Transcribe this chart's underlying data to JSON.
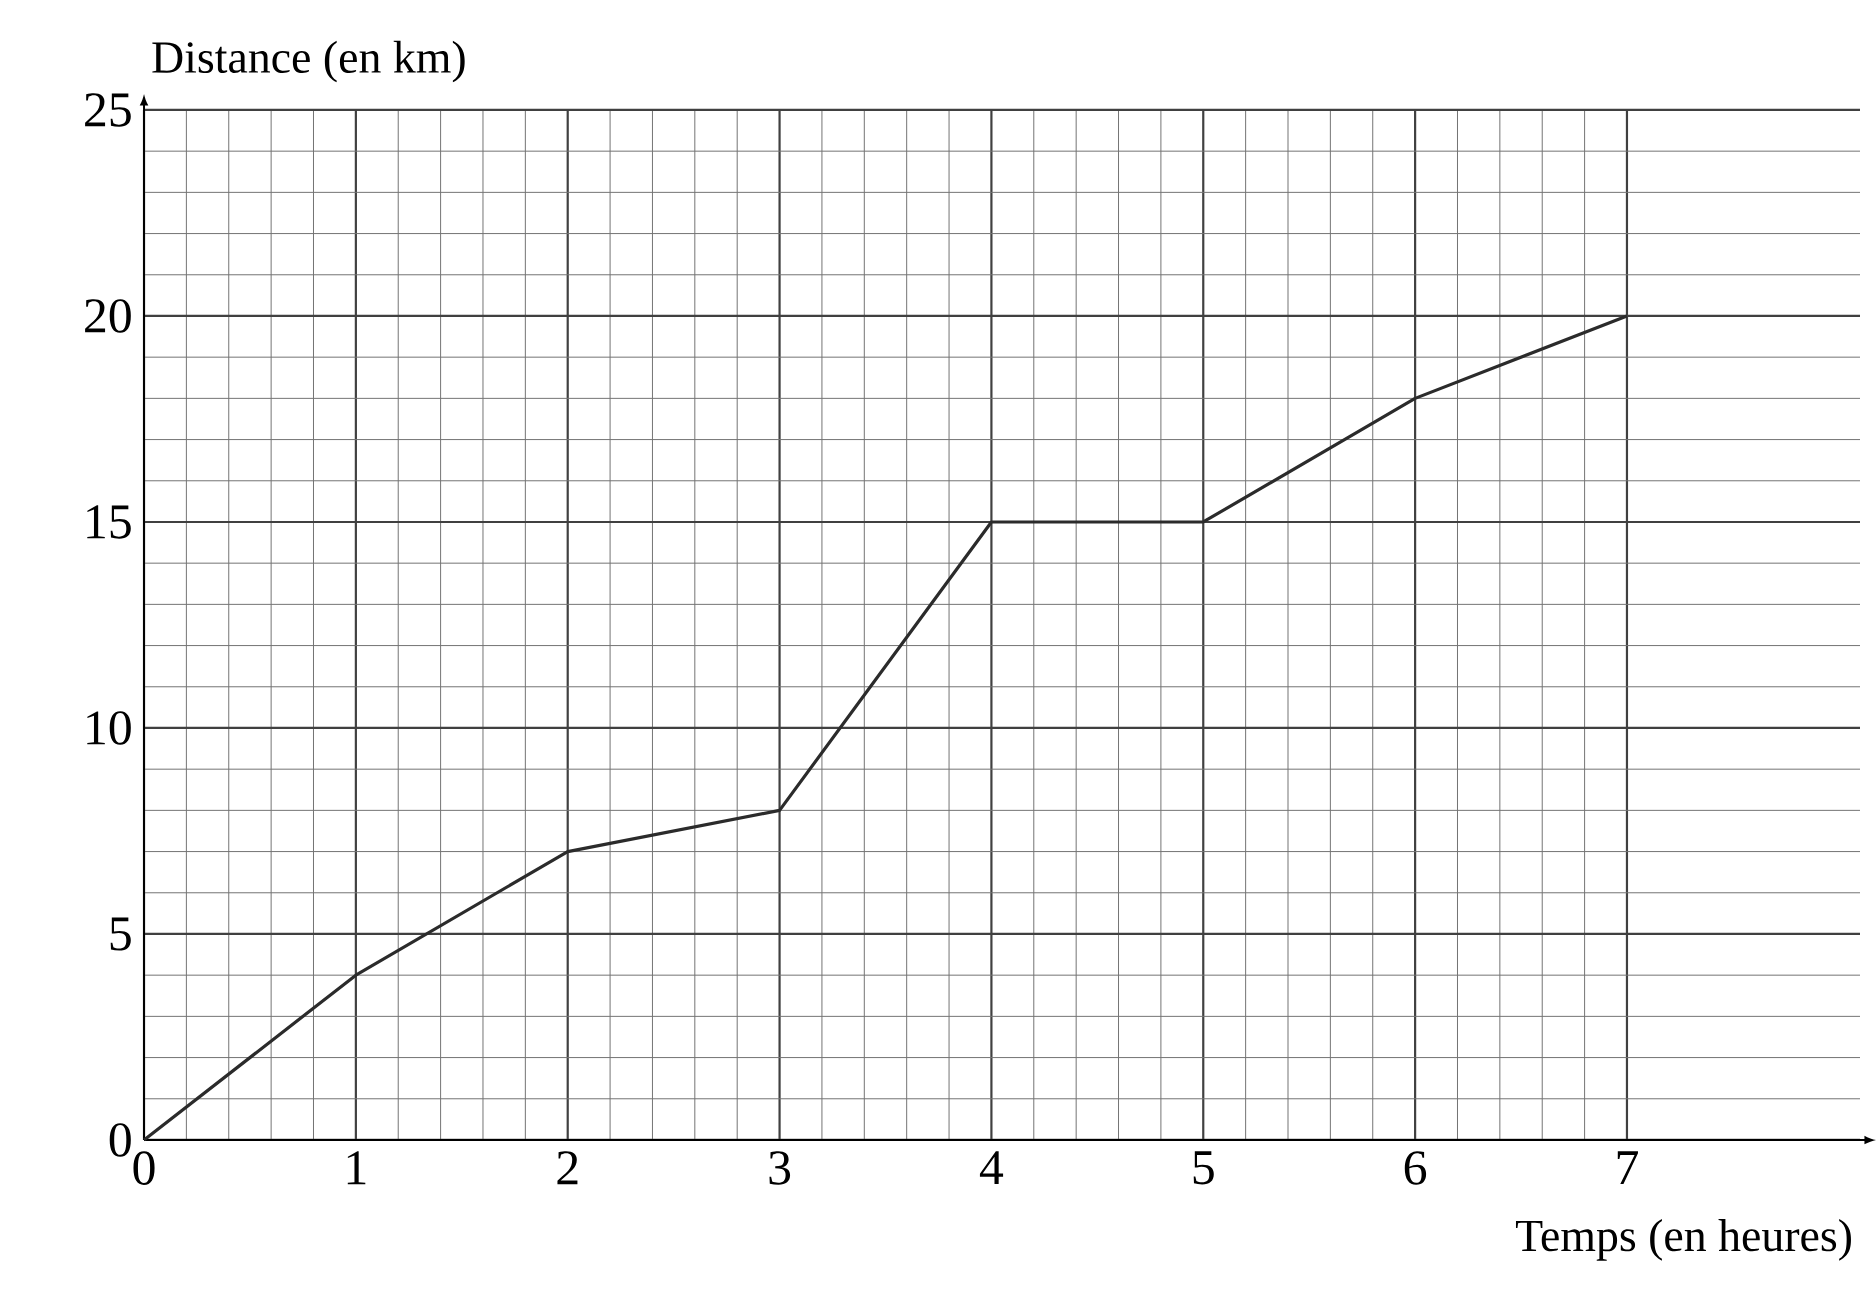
{
  "chart_data": {
    "type": "line",
    "xlabel": "Temps (en heures)",
    "ylabel": "Distance (en km)",
    "x": [
      0,
      1,
      2,
      3,
      4,
      5,
      6,
      7
    ],
    "series": [
      {
        "color": "#2b2b2b",
        "values": [
          0,
          4,
          7,
          8,
          15,
          15,
          18,
          20
        ]
      }
    ],
    "xlim": [
      0,
      8.1
    ],
    "ylim": [
      0,
      25
    ],
    "xticks": [
      0,
      1,
      2,
      3,
      4,
      5,
      6,
      7
    ],
    "yticks": [
      0,
      5,
      10,
      15,
      20,
      25
    ],
    "grid": true
  }
}
